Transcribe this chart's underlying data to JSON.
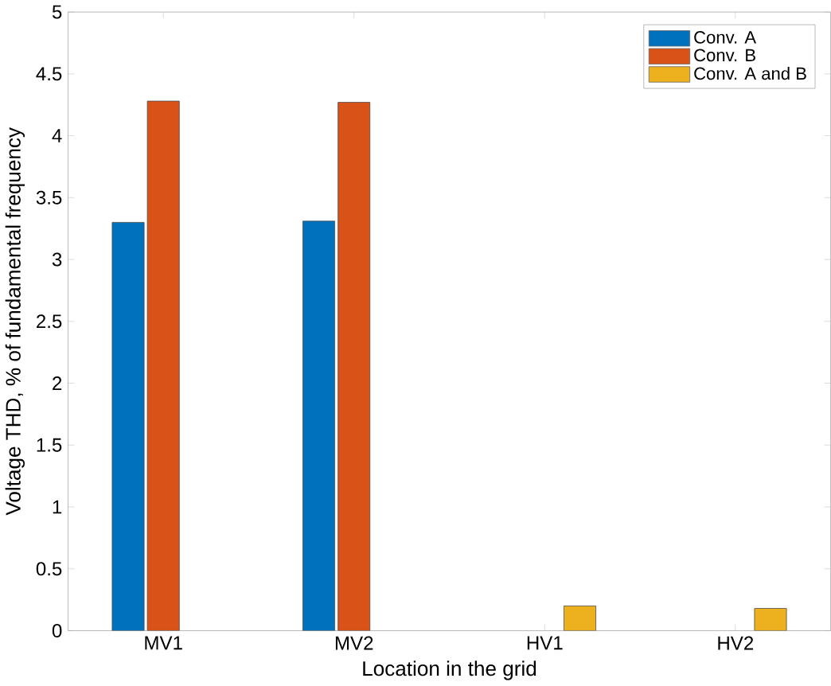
{
  "chart_data": {
    "type": "bar",
    "xlabel": "Location in the grid",
    "ylabel": "Voltage THD, % of fundamental frequency",
    "categories": [
      "MV1",
      "MV2",
      "HV1",
      "HV2"
    ],
    "series": [
      {
        "name": "Conv. A",
        "color": "#0072bd",
        "values": [
          3.3,
          3.31,
          null,
          null
        ]
      },
      {
        "name": "Conv. B",
        "color": "#d95319",
        "values": [
          4.28,
          4.27,
          null,
          null
        ]
      },
      {
        "name": "Conv. A and B",
        "color": "#edb120",
        "values": [
          null,
          null,
          0.2,
          0.18
        ]
      }
    ],
    "ylim": [
      0,
      5
    ],
    "yticks": [
      0,
      0.5,
      1,
      1.5,
      2,
      2.5,
      3,
      3.5,
      4,
      4.5,
      5
    ],
    "legend": "top right",
    "grid": false
  }
}
